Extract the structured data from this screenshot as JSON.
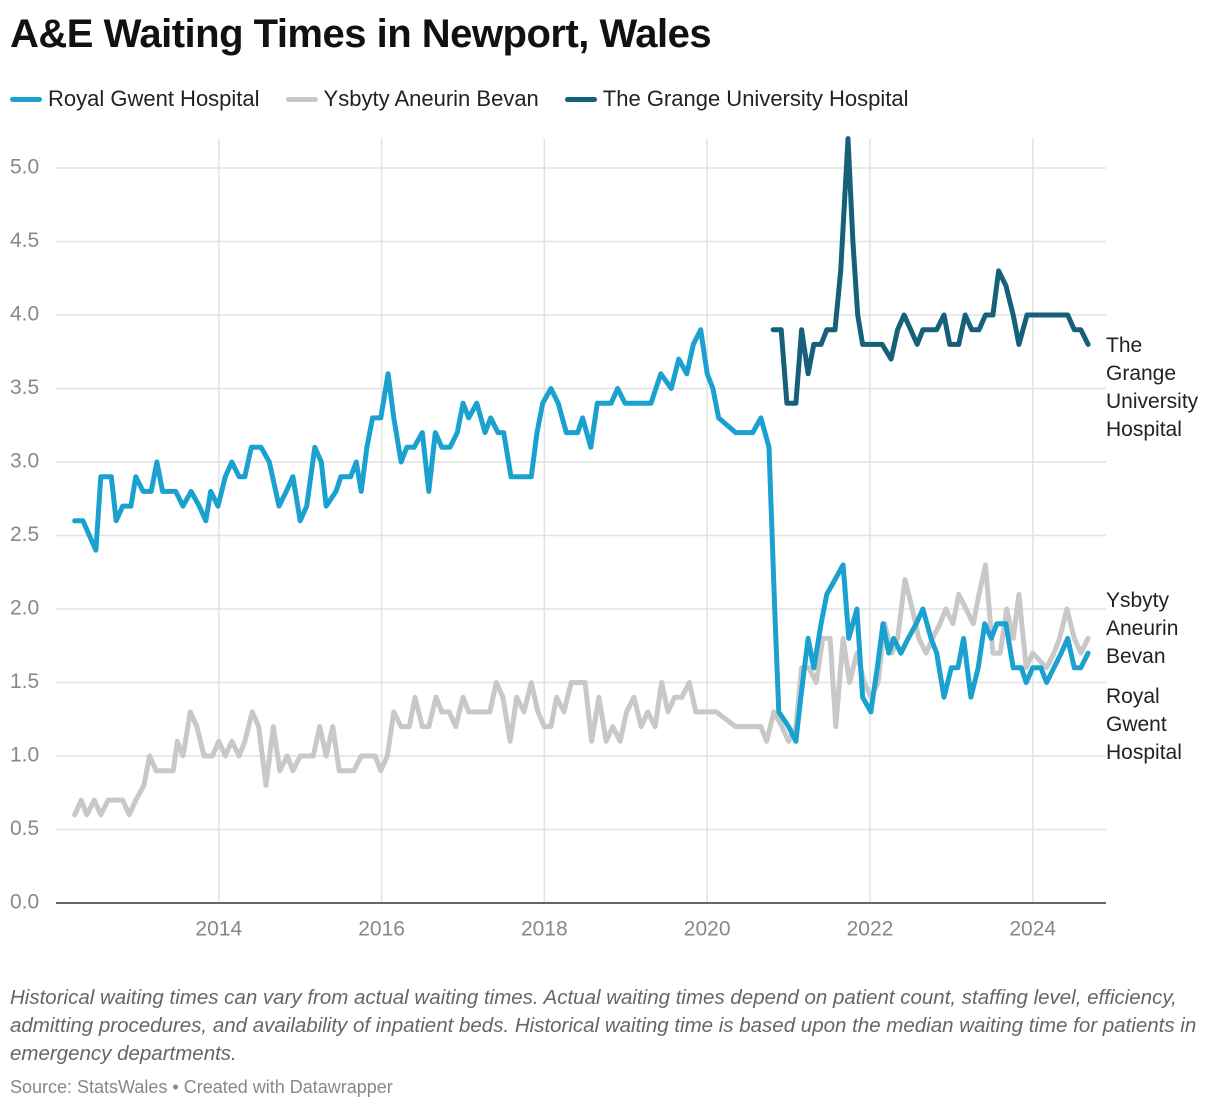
{
  "chart_data": {
    "type": "line",
    "title": "A&E Waiting Times in Newport, Wales",
    "notes": "Historical waiting times can vary from actual waiting times. Actual waiting times depend on patient count, staffing level, efficiency, admitting procedures, and availability of inpatient beds. Historical waiting time is based upon the median waiting time for patients in emergency departments.",
    "source": "Source: StatsWales • Created with Datawrapper",
    "xlim": [
      2012,
      2024.9
    ],
    "xticks": [
      2014,
      2016,
      2018,
      2020,
      2022,
      2024
    ],
    "ylim": [
      0,
      5.2
    ],
    "yticks": [
      {
        "value": 0,
        "label": "0.0"
      },
      0.5,
      {
        "value": 1,
        "label": "1.0"
      },
      1.5,
      {
        "value": 2,
        "label": "2.0"
      },
      2.5,
      {
        "value": 3,
        "label": "3.0"
      },
      3.5,
      {
        "value": 4,
        "label": "4.0"
      },
      4.5,
      {
        "value": 5,
        "label": "5.0"
      }
    ],
    "grid": true,
    "series": [
      {
        "name": "Royal Gwent Hospital",
        "color": "#1ba1cf",
        "x": [
          2012.23,
          2012.33,
          2012.41,
          2012.49,
          2012.55,
          2012.68,
          2012.74,
          2012.82,
          2012.92,
          2012.98,
          2013.07,
          2013.17,
          2013.24,
          2013.31,
          2013.47,
          2013.56,
          2013.66,
          2013.76,
          2013.84,
          2013.9,
          2013.99,
          2014.08,
          2014.16,
          2014.25,
          2014.32,
          2014.4,
          2014.52,
          2014.62,
          2014.74,
          2014.83,
          2014.91,
          2015.0,
          2015.08,
          2015.18,
          2015.26,
          2015.32,
          2015.44,
          2015.5,
          2015.62,
          2015.69,
          2015.75,
          2015.82,
          2015.89,
          2015.99,
          2016.08,
          2016.15,
          2016.24,
          2016.31,
          2016.4,
          2016.5,
          2016.58,
          2016.66,
          2016.74,
          2016.84,
          2016.93,
          2017.0,
          2017.07,
          2017.17,
          2017.27,
          2017.34,
          2017.43,
          2017.5,
          2017.59,
          2017.84,
          2017.91,
          2017.98,
          2018.08,
          2018.17,
          2018.27,
          2018.41,
          2018.47,
          2018.57,
          2018.65,
          2018.82,
          2018.9,
          2018.99,
          2019.31,
          2019.43,
          2019.56,
          2019.65,
          2019.75,
          2019.83,
          2019.92,
          2020.0,
          2020.07,
          2020.14,
          2020.35,
          2020.56,
          2020.66,
          2020.76,
          2020.83,
          2020.88,
          2021.0,
          2021.09,
          2021.15,
          2021.24,
          2021.31,
          2021.4,
          2021.47,
          2021.57,
          2021.67,
          2021.74,
          2021.84,
          2021.91,
          2022.01,
          2022.09,
          2022.16,
          2022.23,
          2022.29,
          2022.38,
          2022.47,
          2022.57,
          2022.65,
          2022.75,
          2022.82,
          2022.91,
          2023.0,
          2023.08,
          2023.15,
          2023.24,
          2023.33,
          2023.41,
          2023.49,
          2023.56,
          2023.67,
          2023.76,
          2023.86,
          2023.92,
          2024.0,
          2024.1,
          2024.17,
          2024.26,
          2024.35,
          2024.43,
          2024.51,
          2024.59,
          2024.68
        ],
        "values": [
          2.6,
          2.6,
          2.5,
          2.4,
          2.9,
          2.9,
          2.6,
          2.7,
          2.7,
          2.9,
          2.8,
          2.8,
          3.0,
          2.8,
          2.8,
          2.7,
          2.8,
          2.7,
          2.6,
          2.8,
          2.7,
          2.9,
          3.0,
          2.9,
          2.9,
          3.1,
          3.1,
          3.0,
          2.7,
          2.8,
          2.9,
          2.6,
          2.7,
          3.1,
          3.0,
          2.7,
          2.8,
          2.9,
          2.9,
          3.0,
          2.8,
          3.1,
          3.3,
          3.3,
          3.6,
          3.3,
          3.0,
          3.1,
          3.1,
          3.2,
          2.8,
          3.2,
          3.1,
          3.1,
          3.2,
          3.4,
          3.3,
          3.4,
          3.2,
          3.3,
          3.2,
          3.2,
          2.9,
          2.9,
          3.2,
          3.4,
          3.5,
          3.4,
          3.2,
          3.2,
          3.3,
          3.1,
          3.4,
          3.4,
          3.5,
          3.4,
          3.4,
          3.6,
          3.5,
          3.7,
          3.6,
          3.8,
          3.9,
          3.6,
          3.5,
          3.3,
          3.2,
          3.2,
          3.3,
          3.1,
          2.0,
          1.3,
          1.2,
          1.1,
          1.4,
          1.8,
          1.6,
          1.9,
          2.1,
          2.2,
          2.3,
          1.8,
          2.0,
          1.4,
          1.3,
          1.6,
          1.9,
          1.7,
          1.8,
          1.7,
          1.8,
          1.9,
          2.0,
          1.8,
          1.7,
          1.4,
          1.6,
          1.6,
          1.8,
          1.4,
          1.6,
          1.9,
          1.8,
          1.9,
          1.9,
          1.6,
          1.6,
          1.5,
          1.6,
          1.6,
          1.5,
          1.6,
          1.7,
          1.8,
          1.6,
          1.6,
          1.7
        ]
      },
      {
        "name": "Ysbyty Aneurin Bevan",
        "color": "#c8c8c8",
        "x": [
          2012.23,
          2012.31,
          2012.38,
          2012.47,
          2012.55,
          2012.64,
          2012.82,
          2012.9,
          2012.98,
          2013.08,
          2013.15,
          2013.23,
          2013.44,
          2013.49,
          2013.56,
          2013.65,
          2013.73,
          2013.82,
          2013.92,
          2014.0,
          2014.08,
          2014.16,
          2014.25,
          2014.32,
          2014.41,
          2014.49,
          2014.58,
          2014.67,
          2014.75,
          2014.84,
          2014.91,
          2015.0,
          2015.16,
          2015.24,
          2015.32,
          2015.4,
          2015.48,
          2015.66,
          2015.75,
          2015.92,
          2015.99,
          2016.07,
          2016.15,
          2016.24,
          2016.34,
          2016.41,
          2016.5,
          2016.58,
          2016.67,
          2016.74,
          2016.83,
          2016.91,
          2017.0,
          2017.07,
          2017.33,
          2017.41,
          2017.49,
          2017.58,
          2017.66,
          2017.75,
          2017.84,
          2017.92,
          2018.0,
          2018.08,
          2018.15,
          2018.24,
          2018.33,
          2018.5,
          2018.58,
          2018.67,
          2018.76,
          2018.84,
          2018.93,
          2019.01,
          2019.1,
          2019.19,
          2019.27,
          2019.36,
          2019.44,
          2019.52,
          2019.6,
          2019.69,
          2019.78,
          2019.86,
          2020.11,
          2020.35,
          2020.66,
          2020.73,
          2020.82,
          2020.92,
          2021.0,
          2021.09,
          2021.16,
          2021.25,
          2021.34,
          2021.42,
          2021.51,
          2021.58,
          2021.67,
          2021.75,
          2021.84,
          2021.93,
          2022.01,
          2022.1,
          2022.18,
          2022.27,
          2022.34,
          2022.43,
          2022.52,
          2022.6,
          2022.69,
          2022.77,
          2022.86,
          2022.93,
          2023.02,
          2023.09,
          2023.18,
          2023.27,
          2023.34,
          2023.42,
          2023.51,
          2023.6,
          2023.68,
          2023.76,
          2023.83,
          2023.92,
          2024.0,
          2024.17,
          2024.26,
          2024.33,
          2024.42,
          2024.51,
          2024.59,
          2024.68
        ],
        "values": [
          0.6,
          0.7,
          0.6,
          0.7,
          0.6,
          0.7,
          0.7,
          0.6,
          0.7,
          0.8,
          1.0,
          0.9,
          0.9,
          1.1,
          1.0,
          1.3,
          1.2,
          1.0,
          1.0,
          1.1,
          1.0,
          1.1,
          1.0,
          1.1,
          1.3,
          1.2,
          0.8,
          1.2,
          0.9,
          1.0,
          0.9,
          1.0,
          1.0,
          1.2,
          1.0,
          1.2,
          0.9,
          0.9,
          1.0,
          1.0,
          0.9,
          1.0,
          1.3,
          1.2,
          1.2,
          1.4,
          1.2,
          1.2,
          1.4,
          1.3,
          1.3,
          1.2,
          1.4,
          1.3,
          1.3,
          1.5,
          1.4,
          1.1,
          1.4,
          1.3,
          1.5,
          1.3,
          1.2,
          1.2,
          1.4,
          1.3,
          1.5,
          1.5,
          1.1,
          1.4,
          1.1,
          1.2,
          1.1,
          1.3,
          1.4,
          1.2,
          1.3,
          1.2,
          1.5,
          1.3,
          1.4,
          1.4,
          1.5,
          1.3,
          1.3,
          1.2,
          1.2,
          1.1,
          1.3,
          1.2,
          1.1,
          1.2,
          1.6,
          1.6,
          1.5,
          1.8,
          1.8,
          1.2,
          1.8,
          1.5,
          1.7,
          1.5,
          1.4,
          1.5,
          1.9,
          1.7,
          1.8,
          2.2,
          2.0,
          1.8,
          1.7,
          1.8,
          1.9,
          2.0,
          1.9,
          2.1,
          2.0,
          1.9,
          2.1,
          2.3,
          1.7,
          1.7,
          2.0,
          1.8,
          2.1,
          1.6,
          1.7,
          1.6,
          1.7,
          1.8,
          2.0,
          1.8,
          1.7,
          1.8
        ]
      },
      {
        "name": "The Grange University Hospital",
        "color": "#17607a",
        "x": [
          2020.81,
          2020.91,
          2020.98,
          2021.09,
          2021.16,
          2021.24,
          2021.31,
          2021.4,
          2021.47,
          2021.57,
          2021.64,
          2021.73,
          2021.79,
          2021.85,
          2021.91,
          2022.15,
          2022.26,
          2022.34,
          2022.42,
          2022.5,
          2022.58,
          2022.65,
          2022.82,
          2022.91,
          2022.98,
          2023.09,
          2023.17,
          2023.25,
          2023.34,
          2023.42,
          2023.51,
          2023.58,
          2023.67,
          2023.76,
          2023.83,
          2023.93,
          2024.43,
          2024.51,
          2024.59,
          2024.68
        ],
        "values": [
          3.9,
          3.9,
          3.4,
          3.4,
          3.9,
          3.6,
          3.8,
          3.8,
          3.9,
          3.9,
          4.3,
          5.2,
          4.5,
          4.0,
          3.8,
          3.8,
          3.7,
          3.9,
          4.0,
          3.9,
          3.8,
          3.9,
          3.9,
          4.0,
          3.8,
          3.8,
          4.0,
          3.9,
          3.9,
          4.0,
          4.0,
          4.3,
          4.2,
          4.0,
          3.8,
          4.0,
          4.0,
          3.9,
          3.9,
          3.8
        ]
      }
    ]
  }
}
